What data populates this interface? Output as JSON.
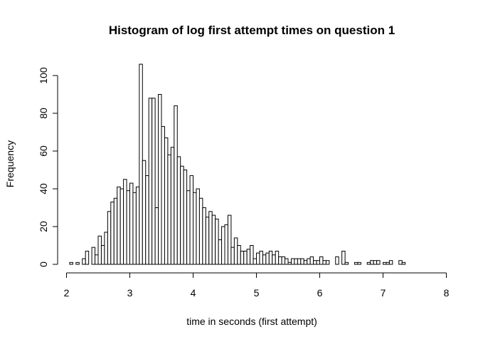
{
  "chart_data": {
    "type": "bar",
    "title": "Histogram of log first attempt times on question 1",
    "xlabel": "time in seconds (first attempt)",
    "ylabel": "Frequency",
    "xlim": [
      2,
      8
    ],
    "ylim": [
      0,
      106
    ],
    "x_ticks": [
      2,
      3,
      4,
      5,
      6,
      7,
      8
    ],
    "y_ticks": [
      0,
      20,
      40,
      60,
      80,
      100
    ],
    "bin_width": 0.05,
    "bin_start": 2.05,
    "values": [
      1,
      0,
      1,
      0,
      3,
      7,
      0,
      9,
      5,
      15,
      10,
      17,
      28,
      33,
      35,
      41,
      40,
      45,
      39,
      43,
      38,
      41,
      106,
      55,
      47,
      88,
      88,
      30,
      90,
      73,
      67,
      58,
      62,
      84,
      57,
      52,
      50,
      39,
      47,
      38,
      40,
      35,
      30,
      25,
      28,
      26,
      24,
      13,
      20,
      21,
      26,
      9,
      14,
      10,
      7,
      7,
      8,
      10,
      3,
      6,
      7,
      5,
      6,
      7,
      5,
      7,
      4,
      4,
      3,
      1,
      3,
      3,
      3,
      3,
      2,
      3,
      4,
      2,
      2,
      4,
      2,
      2,
      0,
      0,
      4,
      0,
      7,
      1,
      0,
      0,
      1,
      1,
      0,
      0,
      1,
      2,
      2,
      2,
      0,
      1,
      1,
      2,
      0,
      0,
      2,
      1
    ],
    "grid": false
  }
}
